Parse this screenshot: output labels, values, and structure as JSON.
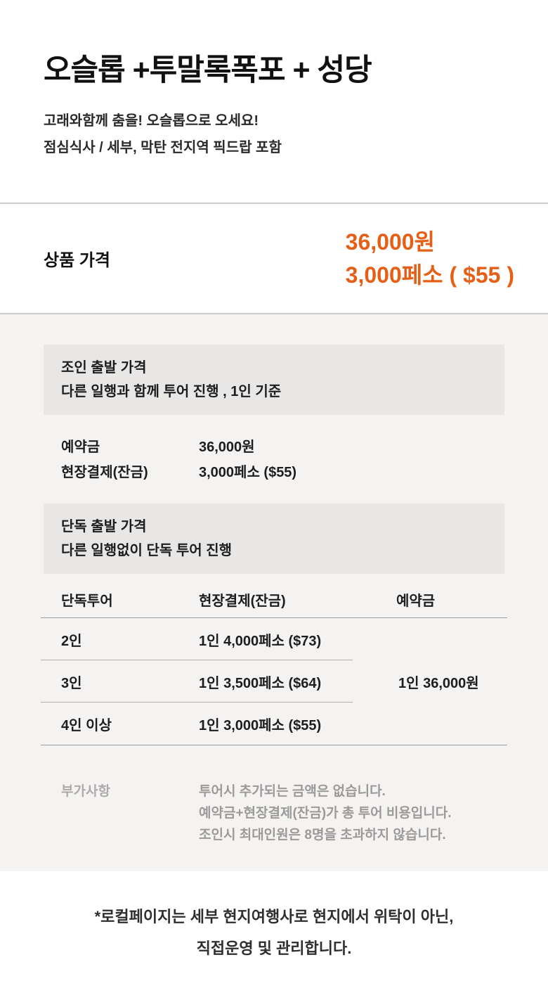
{
  "header": {
    "title": "오슬롭 +투말록폭포 + 성당",
    "subtitle_lines": [
      "고래와함께 춤을! 오슬롭으로 오세요!",
      "점심식사 / 세부, 막탄 전지역 픽드랍 포함"
    ]
  },
  "price_summary": {
    "label": "상품 가격",
    "price_lines": [
      "36,000원",
      "3,000페소 ( $55 )"
    ]
  },
  "join_section": {
    "box_title": "조인 출발 가격",
    "box_subtitle": "다른 일행과 함께 투어 진행 , 1인 기준",
    "rows": [
      {
        "label": "예약금",
        "value": "36,000원"
      },
      {
        "label": "현장결제(잔금)",
        "value": "3,000페소 ($55)"
      }
    ]
  },
  "solo_section": {
    "box_title": "단독 출발 가격",
    "box_subtitle": "다른 일행없이 단독 투어 진행",
    "table": {
      "headers": [
        "단독투어",
        "현장결제(잔금)",
        "예약금"
      ],
      "rows": [
        {
          "people": "2인",
          "onsite": "1인 4,000페소 ($73)"
        },
        {
          "people": "3인",
          "onsite": "1인 3,500페소 ($64)"
        },
        {
          "people": "4인 이상",
          "onsite": "1인 3,000페소 ($55)"
        }
      ],
      "deposit_all_rows": "1인 36,000원"
    }
  },
  "notes_section": {
    "label": "부가사항",
    "notes": [
      "투어시 추가되는 금액은 없습니다.",
      "예약금+현장결제(잔금)가 총 투어 비용입니다.",
      "조인시 최대인원은 8명을 초과하지 않습니다."
    ]
  },
  "footer": {
    "lines": [
      "*로컬페이지는 세부 현지여행사로 현지에서 위탁이 아닌,",
      "직접운영 및 관리합니다."
    ]
  },
  "colors": {
    "accent_orange": "#e55f16",
    "section_bg": "#f4f3f2",
    "box_bg": "#e8e7e6",
    "divider": "#cbcbcb",
    "muted_text": "#9b9a99"
  }
}
